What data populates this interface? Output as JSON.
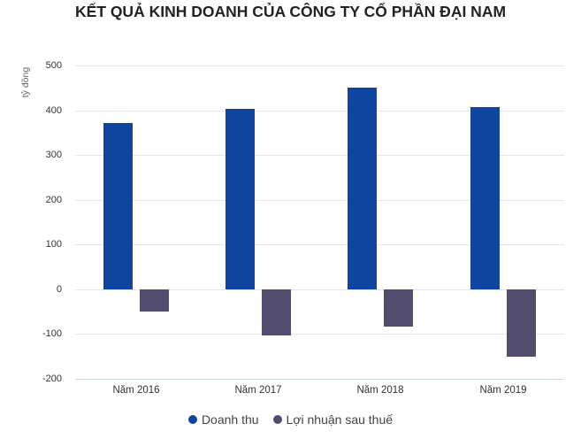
{
  "chart_data": {
    "type": "bar",
    "title": "KẾT QUẢ KINH DOANH CỦA CÔNG TY CỔ PHẦN ĐẠI NAM",
    "xlabel": "",
    "ylabel": "tỷ đồng",
    "categories": [
      "Năm 2016",
      "Năm 2017",
      "Năm 2018",
      "Năm 2019"
    ],
    "series": [
      {
        "name": "Doanh thu",
        "color": "#0f45a0",
        "values": [
          371,
          403,
          452,
          407
        ]
      },
      {
        "name": "Lợi nhuận sau thuế",
        "color": "#524d6e",
        "values": [
          -50,
          -103,
          -84,
          -152
        ]
      }
    ],
    "ylim": [
      -200,
      500
    ],
    "yticks": [
      "500",
      "400",
      "300",
      "200",
      "100",
      "0",
      "-100",
      "-200"
    ],
    "grid": true,
    "legend_position": "bottom"
  }
}
